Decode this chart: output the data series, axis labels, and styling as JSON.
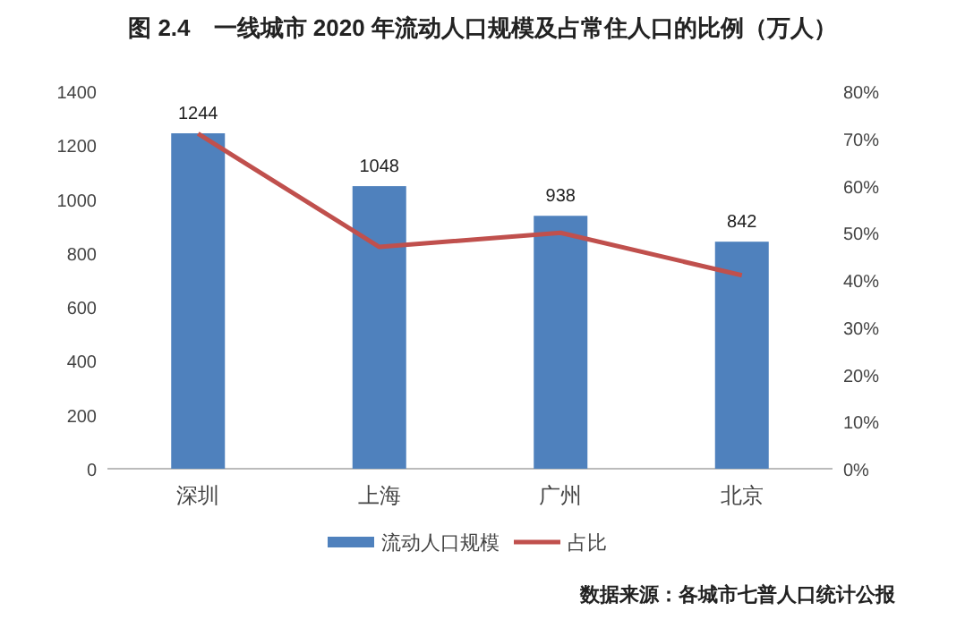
{
  "chart_data": {
    "type": "bar",
    "title": "图 2.4　一线城市 2020 年流动人口规模及占常住人口的比例（万人）",
    "categories": [
      "深圳",
      "上海",
      "广州",
      "北京"
    ],
    "series": [
      {
        "name": "流动人口规模",
        "color": "#4f81bd",
        "values": [
          1244,
          1048,
          938,
          842
        ]
      },
      {
        "name": "占比",
        "color": "#c0504d",
        "values": [
          71,
          47,
          50,
          41
        ],
        "type": "line",
        "axis": "y2"
      }
    ],
    "value_labels": [
      "1244",
      "1048",
      "938",
      "842"
    ],
    "ylim": [
      0,
      1400
    ],
    "yticks": [
      0,
      200,
      400,
      600,
      800,
      1000,
      1200,
      1400
    ],
    "y2lim": [
      0,
      80
    ],
    "y2ticks": [
      {
        "value": 0,
        "label": "0%"
      },
      {
        "value": 10,
        "label": "10%"
      },
      {
        "value": 20,
        "label": "20%"
      },
      {
        "value": 30,
        "label": "30%"
      },
      {
        "value": 40,
        "label": "40%"
      },
      {
        "value": 50,
        "label": "50%"
      },
      {
        "value": 60,
        "label": "60%"
      },
      {
        "value": 70,
        "label": "70%"
      },
      {
        "value": 80,
        "label": "80%"
      }
    ],
    "grid": false,
    "legend": "bottom",
    "marker": "none",
    "annotations": [
      "数据来源：各城市七普人口统计公报"
    ]
  }
}
